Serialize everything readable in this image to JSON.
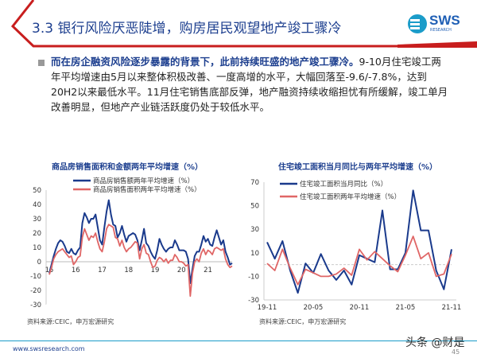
{
  "header": {
    "title": "3.3 银行风险厌恶陡增，购房居民观望地产竣工骤冷",
    "logo_text": "SWS",
    "logo_sub": "RESEARCH"
  },
  "body": {
    "bold": "而在房企融资风险逐步暴露的背景下，此前持续旺盛的地产竣工骤冷。",
    "text": "9-10月住宅竣工两年平均增速由5月以来整体积极改善、一度高增的水平，大幅回落至-9.6/-7.8%，达到20H2以来最低水平。11月住宅销售底部反弹，地产融资持续收缩担忧有所缓解，竣工单月改善明显，但地产产业链活跃度仍处于较低水平。"
  },
  "chart_data": [
    {
      "type": "line",
      "title": "商品房销售面积和金额两年平均增速（%）",
      "ylim": [
        -30,
        50
      ],
      "yticks": [
        50,
        40,
        30,
        20,
        10,
        0,
        -10,
        -20,
        -30
      ],
      "xticks": [
        "15",
        "16",
        "17",
        "18",
        "19",
        "20",
        "21"
      ],
      "start": "2015-01",
      "source": "资料来源:CEIC，申万宏源研究",
      "series": [
        {
          "name": "商品房销售额两年平均增速（%）",
          "color": "#1a3a8c",
          "values": [
            -8,
            -2,
            4,
            9,
            13,
            15,
            14,
            11,
            7,
            6,
            9,
            6,
            5,
            8,
            10,
            27,
            34,
            31,
            27,
            30,
            30,
            33,
            24,
            15,
            12,
            24,
            35,
            43,
            33,
            26,
            25,
            17,
            20,
            25,
            19,
            14,
            18,
            19,
            20,
            19,
            15,
            8,
            15,
            23,
            13,
            11,
            7,
            4,
            2,
            8,
            16,
            12,
            9,
            7,
            9,
            10,
            10,
            15,
            12,
            8,
            8,
            8,
            7,
            2,
            -15,
            -5,
            4,
            7,
            7,
            12,
            18,
            14,
            16,
            12,
            11,
            17,
            22,
            17,
            12,
            15,
            7,
            3,
            -2,
            -1
          ]
        },
        {
          "name": "商品房销售面积两年平均增速（%）",
          "color": "#e06666",
          "values": [
            -9,
            -4,
            2,
            5,
            7,
            8,
            9,
            7,
            5,
            3,
            4,
            -2,
            0,
            3,
            4,
            17,
            23,
            19,
            15,
            18,
            17,
            20,
            14,
            9,
            7,
            14,
            23,
            26,
            25,
            24,
            17,
            16,
            11,
            15,
            10,
            7,
            9,
            10,
            12,
            14,
            13,
            2,
            9,
            12,
            6,
            5,
            0,
            -4,
            -3,
            1,
            3,
            2,
            0,
            2,
            -1,
            1,
            1,
            5,
            3,
            0,
            0,
            -1,
            -3,
            -2,
            -24,
            -8,
            0,
            2,
            0,
            6,
            9,
            5,
            8,
            7,
            5,
            9,
            10,
            9,
            8,
            9,
            2,
            -2,
            -4,
            -3
          ]
        }
      ]
    },
    {
      "type": "line",
      "title": "住宅竣工面积当月同比与两年平均增速（%）",
      "ylim": [
        -30,
        70
      ],
      "yticks": [
        70,
        50,
        30,
        10,
        -10,
        -30
      ],
      "xticks": [
        "19-11",
        "20-05",
        "20-11",
        "21-05",
        "21-11"
      ],
      "start": "2019-11",
      "source": "资料来源:CEIC，申万宏源研究",
      "series": [
        {
          "name": "住宅竣工面积当月同比（%）",
          "color": "#1a3a8c",
          "values": [
            19,
            5,
            20,
            -5,
            -24,
            1,
            -7,
            9,
            -5,
            -13,
            -5,
            -17,
            8,
            5,
            2,
            46,
            -4,
            -4,
            10,
            63,
            29,
            29,
            -5,
            -21,
            13
          ]
        },
        {
          "name": "住宅竣工面积两年平均增速（%）",
          "color": "#e06666",
          "values": [
            1,
            -5,
            13,
            -3,
            -17,
            -4,
            -7,
            -10,
            -10,
            -8,
            -3,
            -9,
            13,
            4,
            11,
            5,
            -1,
            -6,
            8,
            24,
            5,
            10,
            -10,
            -8,
            9
          ]
        }
      ]
    }
  ],
  "footer": {
    "url": "www.swsresearch.com",
    "page": "45",
    "watermark": "头条 @财是"
  }
}
